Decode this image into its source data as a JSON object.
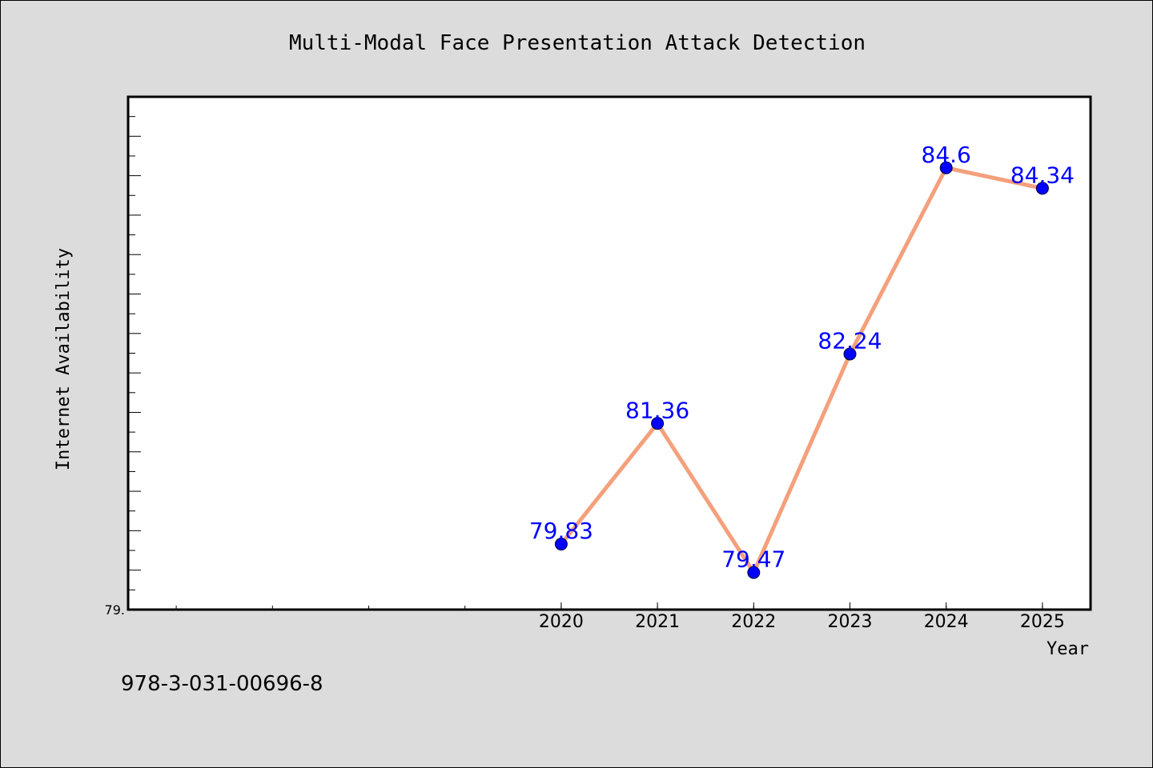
{
  "chart_data": {
    "type": "line",
    "title": "Multi-Modal Face Presentation Attack Detection",
    "xlabel": "Year",
    "ylabel": "Internet Availability",
    "x": [
      "2020",
      "2021",
      "2022",
      "2023",
      "2024",
      "2025"
    ],
    "values": [
      79.83,
      81.36,
      79.47,
      82.24,
      84.6,
      84.34
    ],
    "data_labels": [
      "79.83",
      "81.36",
      "79.47",
      "82.24",
      "84.6",
      "84.34"
    ],
    "y_tick_label": "79.",
    "ylim": [
      79.0,
      85.5
    ],
    "xlim": [
      2015.5,
      2025.5
    ],
    "grid": false,
    "legend": "none",
    "line_color": "#f4a07c",
    "marker_color": "#0000ff",
    "label_color": "#0000ff",
    "plot_background": "#ffffff",
    "figure_background": "#dcdcdc"
  },
  "footer_text": "978-3-031-00696-8"
}
